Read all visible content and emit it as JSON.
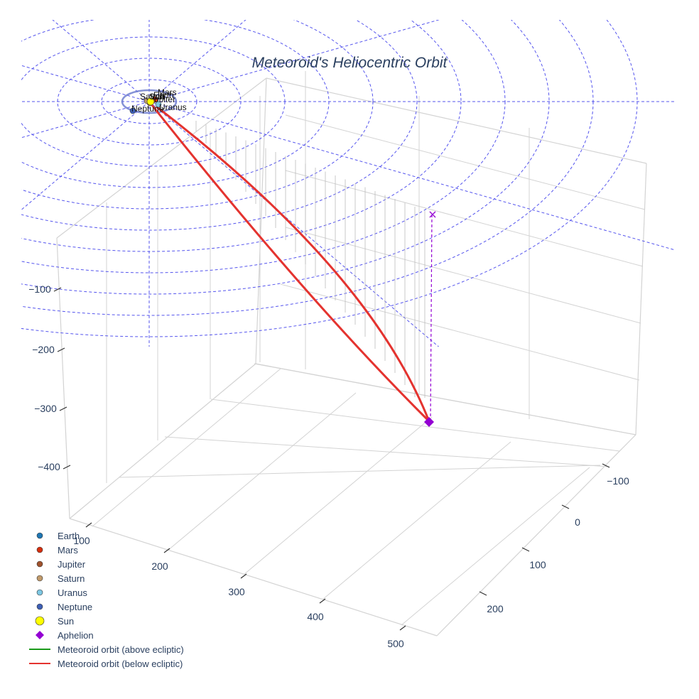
{
  "chart_data": {
    "type": "scatter3d",
    "title": "Meteoroid's Heliocentric Orbit",
    "axes": {
      "x": {
        "ticks": [
          100,
          200,
          300,
          400,
          500
        ]
      },
      "y": {
        "ticks": [
          -100,
          0,
          100,
          200
        ]
      },
      "z": {
        "ticks": [
          -100,
          -200,
          -300,
          -400
        ]
      }
    },
    "colors": {
      "grid": "#d3d3d3",
      "ecliptic_grid": "#5555ee",
      "orbit_below": "#e4332f",
      "orbit_above": "#1a9a1a",
      "aphelion": "#9400d3",
      "drop_lines": "#bbbbbb",
      "tick_text": "#2a3f5f"
    },
    "planets": [
      {
        "name": "Earth",
        "color": "#1f77b4",
        "label": "Earth"
      },
      {
        "name": "Mars",
        "color": "#d62f0f",
        "label": "Mars"
      },
      {
        "name": "Jupiter",
        "color": "#a0522d",
        "label": "Jupiter"
      },
      {
        "name": "Saturn",
        "color": "#c19a6b",
        "label": "Saturn"
      },
      {
        "name": "Uranus",
        "color": "#7ec8e3",
        "label": "Uranus"
      },
      {
        "name": "Neptune",
        "color": "#3e5fb5",
        "label": "Neptune"
      },
      {
        "name": "Sun",
        "color": "#ffff00",
        "label": "Sun"
      }
    ],
    "meteoroid": {
      "aphelion_name": "Aphelion",
      "aphelion_marker": "×",
      "orbit_below_label": "Meteoroid orbit (below ecliptic)",
      "orbit_above_label": "Meteoroid orbit (above ecliptic)"
    },
    "legend": [
      {
        "label": "Earth",
        "kind": "dot",
        "color": "#1f77b4"
      },
      {
        "label": "Mars",
        "kind": "dot",
        "color": "#d62f0f"
      },
      {
        "label": "Jupiter",
        "kind": "dot",
        "color": "#a0522d"
      },
      {
        "label": "Saturn",
        "kind": "dot",
        "color": "#c19a6b"
      },
      {
        "label": "Uranus",
        "kind": "dot",
        "color": "#7ec8e3"
      },
      {
        "label": "Neptune",
        "kind": "dot",
        "color": "#3e5fb5"
      },
      {
        "label": "Sun",
        "kind": "sun",
        "color": "#ffff00"
      },
      {
        "label": "Aphelion",
        "kind": "diamond",
        "color": "#9400d3"
      },
      {
        "label": "Meteoroid orbit (above ecliptic)",
        "kind": "line",
        "color": "#1a9a1a"
      },
      {
        "label": "Meteoroid orbit (below ecliptic)",
        "kind": "line",
        "color": "#e4332f"
      }
    ]
  }
}
